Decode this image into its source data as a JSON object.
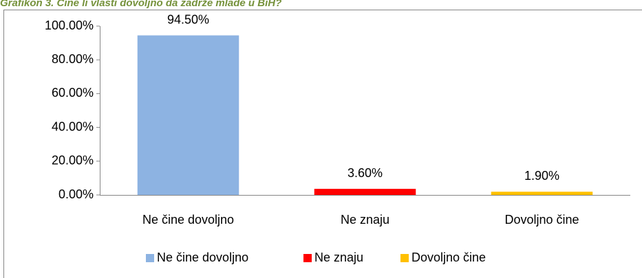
{
  "chart_data": {
    "type": "bar",
    "title": "Grafikon 3. Čine li vlasti dovoljno da zadrže mlade u BiH?",
    "categories": [
      "Ne čine dovoljno",
      "Ne znaju",
      "Dovoljno čine"
    ],
    "values": [
      94.5,
      3.6,
      1.9
    ],
    "value_labels": [
      "94.50%",
      "3.60%",
      "1.90%"
    ],
    "colors": [
      "#8db3e2",
      "#ff0000",
      "#ffc000"
    ],
    "ylim": [
      0,
      100
    ],
    "yticks": [
      {
        "value": 0,
        "label": "0.00%"
      },
      {
        "value": 20,
        "label": "20.00%"
      },
      {
        "value": 40,
        "label": "40.00%"
      },
      {
        "value": 60,
        "label": "60.00%"
      },
      {
        "value": 80,
        "label": "80.00%"
      },
      {
        "value": 100,
        "label": "100.00%"
      }
    ],
    "grid": false,
    "legend": "bottom"
  }
}
